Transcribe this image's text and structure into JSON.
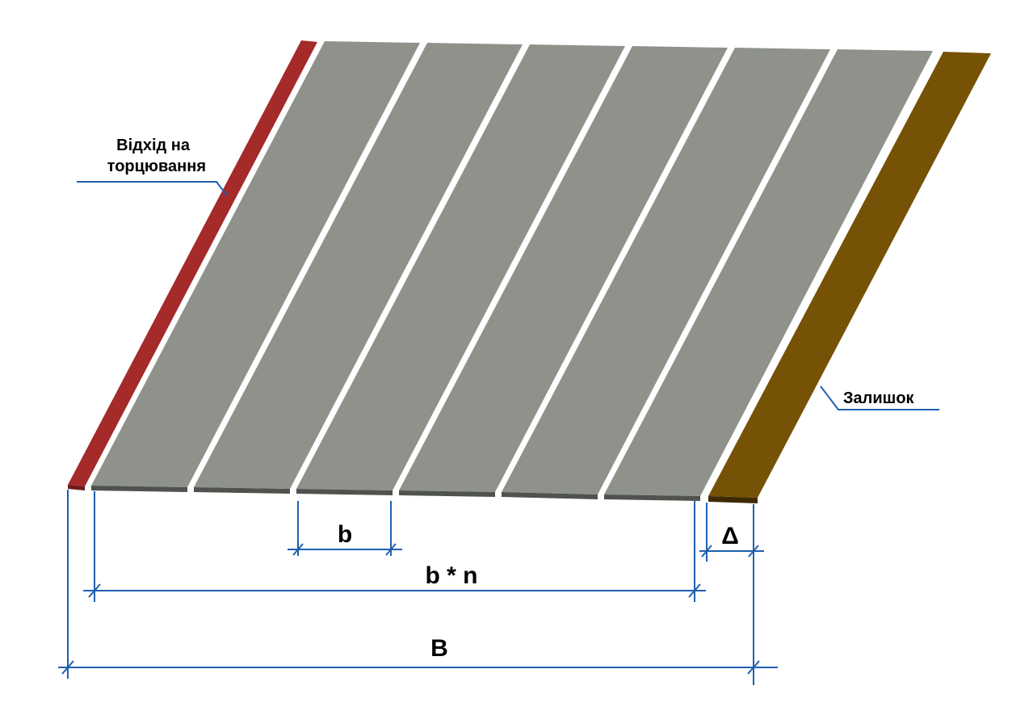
{
  "labels": {
    "trim_waste_line1": "Відхід на",
    "trim_waste_line2": "торцювання",
    "remainder": "Залишок",
    "strip_width": "b",
    "strips_total": "b * n",
    "remainder_width": "Δ",
    "sheet_width": "B"
  },
  "colors": {
    "trim_strip": "#a52a2a",
    "strip": "#8e928b",
    "remainder_strip": "#765206",
    "dimension_lines": "#1f5fb0"
  }
}
